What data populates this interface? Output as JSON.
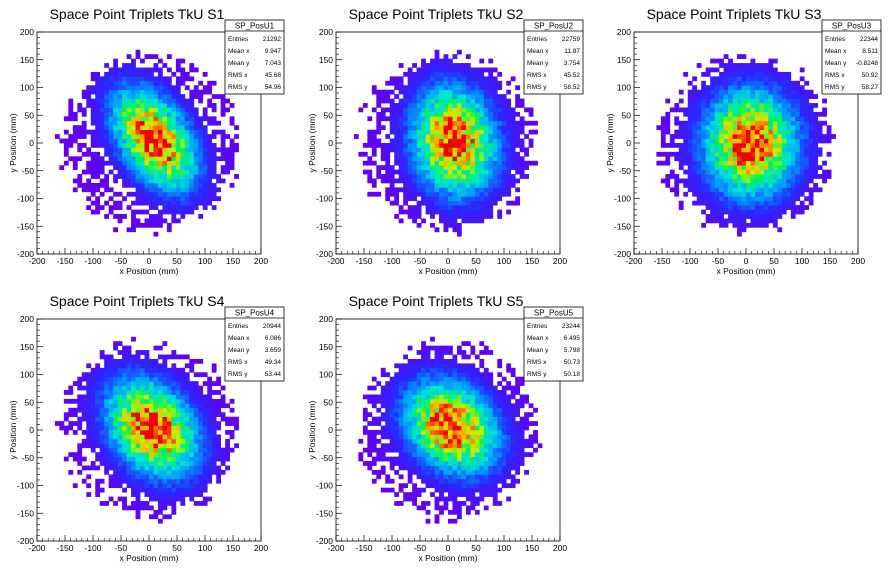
{
  "chart_data": [
    {
      "type": "heatmap",
      "title": "Space Point Triplets TkU S1",
      "xlabel": "x Position (mm)",
      "ylabel": "y Position (mm)",
      "xlim": [
        -200,
        200
      ],
      "ylim": [
        -200,
        200
      ],
      "xticks": [
        -200,
        -150,
        -100,
        -50,
        0,
        50,
        100,
        150,
        200
      ],
      "yticks": [
        -200,
        -150,
        -100,
        -50,
        0,
        50,
        100,
        150,
        200
      ],
      "stats": {
        "name": "SP_PosU1",
        "rows": [
          {
            "label": "Entries",
            "value": "21292"
          },
          {
            "label": "Mean x",
            "value": "9.947"
          },
          {
            "label": "Mean y",
            "value": "7.043"
          },
          {
            "label": "RMS x",
            "value": "45.68"
          },
          {
            "label": "RMS y",
            "value": "54.96"
          }
        ]
      },
      "model": {
        "cx": 9.947,
        "cy": 7.043,
        "sx": 45.68,
        "sy": 54.96,
        "rho": -0.45,
        "radius": 170,
        "seed": 11
      }
    },
    {
      "type": "heatmap",
      "title": "Space Point Triplets TkU S2",
      "xlabel": "x Position (mm)",
      "ylabel": "y Position (mm)",
      "xlim": [
        -200,
        200
      ],
      "ylim": [
        -200,
        200
      ],
      "xticks": [
        -200,
        -150,
        -100,
        -50,
        0,
        50,
        100,
        150,
        200
      ],
      "yticks": [
        -200,
        -150,
        -100,
        -50,
        0,
        50,
        100,
        150,
        200
      ],
      "stats": {
        "name": "SP_PosU2",
        "rows": [
          {
            "label": "Entries",
            "value": "22759"
          },
          {
            "label": "Mean x",
            "value": "11.87"
          },
          {
            "label": "Mean y",
            "value": "3.754"
          },
          {
            "label": "RMS x",
            "value": "45.52"
          },
          {
            "label": "RMS y",
            "value": "58.52"
          }
        ]
      },
      "model": {
        "cx": 11.87,
        "cy": 3.754,
        "sx": 45.52,
        "sy": 58.52,
        "rho": -0.1,
        "radius": 170,
        "seed": 23
      }
    },
    {
      "type": "heatmap",
      "title": "Space Point Triplets TkU S3",
      "xlabel": "x Position (mm)",
      "ylabel": "y Position (mm)",
      "xlim": [
        -200,
        200
      ],
      "ylim": [
        -200,
        200
      ],
      "xticks": [
        -200,
        -150,
        -100,
        -50,
        0,
        50,
        100,
        150,
        200
      ],
      "yticks": [
        -200,
        -150,
        -100,
        -50,
        0,
        50,
        100,
        150,
        200
      ],
      "stats": {
        "name": "SP_PosU3",
        "rows": [
          {
            "label": "Entries",
            "value": "22344"
          },
          {
            "label": "Mean x",
            "value": "8.511"
          },
          {
            "label": "Mean y",
            "value": "-0.8248"
          },
          {
            "label": "RMS x",
            "value": "50.92"
          },
          {
            "label": "RMS y",
            "value": "58.27"
          }
        ]
      },
      "model": {
        "cx": 8.511,
        "cy": -0.8248,
        "sx": 50.92,
        "sy": 58.27,
        "rho": 0.0,
        "radius": 170,
        "seed": 37
      }
    },
    {
      "type": "heatmap",
      "title": "Space Point Triplets TkU S4",
      "xlabel": "x Position (mm)",
      "ylabel": "y Position (mm)",
      "xlim": [
        -200,
        200
      ],
      "ylim": [
        -200,
        200
      ],
      "xticks": [
        -200,
        -150,
        -100,
        -50,
        0,
        50,
        100,
        150,
        200
      ],
      "yticks": [
        -200,
        -150,
        -100,
        -50,
        0,
        50,
        100,
        150,
        200
      ],
      "stats": {
        "name": "SP_PosU4",
        "rows": [
          {
            "label": "Entries",
            "value": "20944"
          },
          {
            "label": "Mean x",
            "value": "6.086"
          },
          {
            "label": "Mean y",
            "value": "3.659"
          },
          {
            "label": "RMS x",
            "value": "49.34"
          },
          {
            "label": "RMS y",
            "value": "53.44"
          }
        ]
      },
      "model": {
        "cx": 6.086,
        "cy": 3.659,
        "sx": 49.34,
        "sy": 53.44,
        "rho": -0.3,
        "radius": 170,
        "seed": 41
      }
    },
    {
      "type": "heatmap",
      "title": "Space Point Triplets TkU S5",
      "xlabel": "x Position (mm)",
      "ylabel": "y Position (mm)",
      "xlim": [
        -200,
        200
      ],
      "ylim": [
        -200,
        200
      ],
      "xticks": [
        -200,
        -150,
        -100,
        -50,
        0,
        50,
        100,
        150,
        200
      ],
      "yticks": [
        -200,
        -150,
        -100,
        -50,
        0,
        50,
        100,
        150,
        200
      ],
      "stats": {
        "name": "SP_PosU5",
        "rows": [
          {
            "label": "Entries",
            "value": "23244"
          },
          {
            "label": "Mean x",
            "value": "6.495"
          },
          {
            "label": "Mean y",
            "value": "5.798"
          },
          {
            "label": "RMS x",
            "value": "50.73"
          },
          {
            "label": "RMS y",
            "value": "50.18"
          }
        ]
      },
      "model": {
        "cx": 6.495,
        "cy": 5.798,
        "sx": 50.73,
        "sy": 50.18,
        "rho": -0.25,
        "radius": 170,
        "seed": 53
      }
    }
  ]
}
